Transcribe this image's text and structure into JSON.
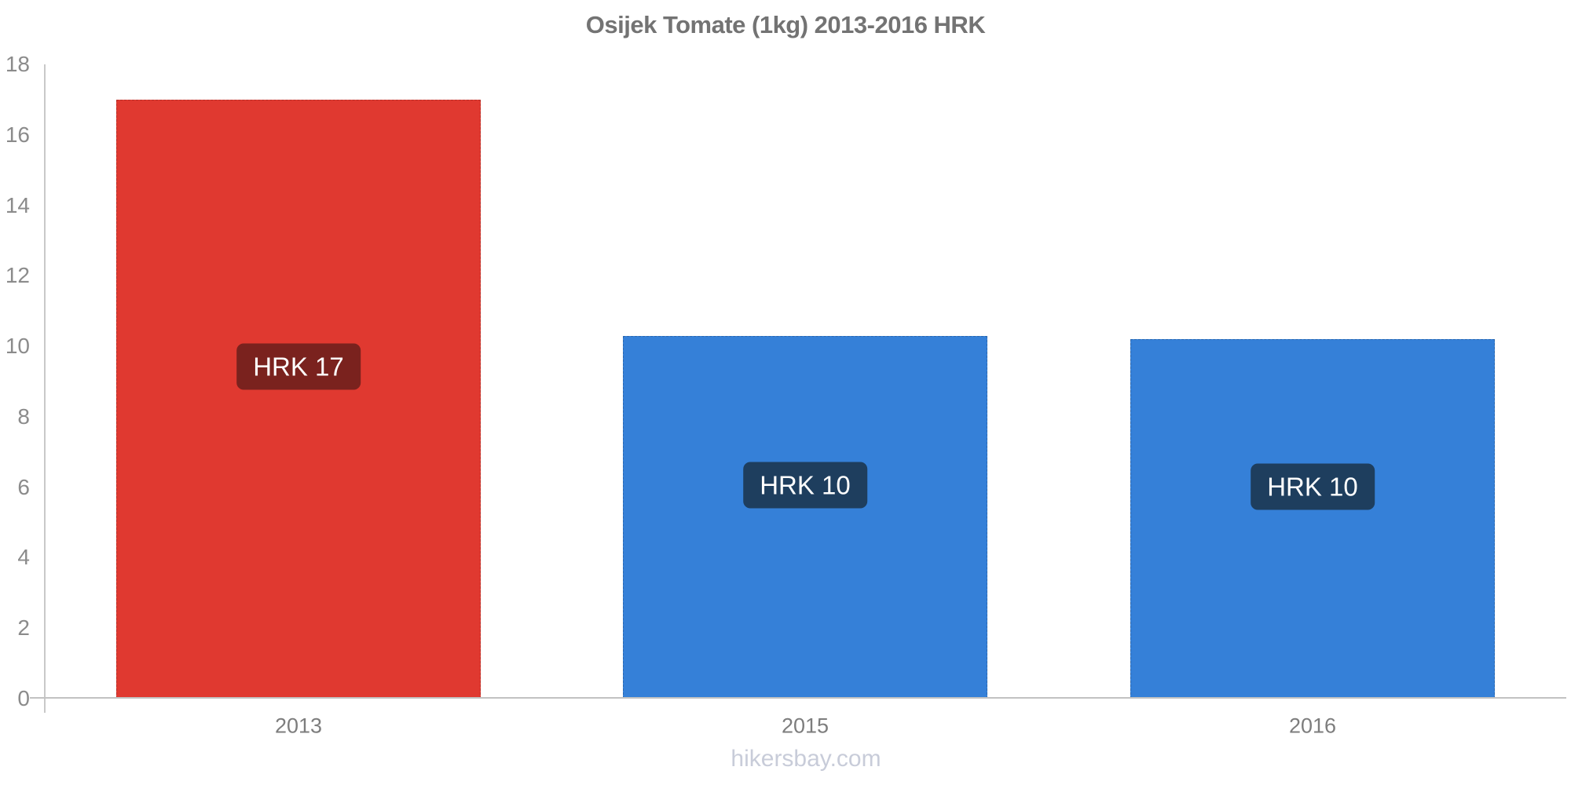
{
  "chart_data": {
    "type": "bar",
    "title": "Osijek Tomate (1kg) 2013-2016 HRK",
    "xlabel": "",
    "ylabel": "",
    "categories": [
      "2013",
      "2015",
      "2016"
    ],
    "values": [
      17,
      10.3,
      10.2
    ],
    "bar_labels": [
      "HRK 17",
      "HRK 10",
      "HRK 10"
    ],
    "bar_colors": [
      "#e03930",
      "#3580d8",
      "#3580d8"
    ],
    "label_bg_colors": [
      "#7a221e",
      "#1e3e5e",
      "#1e3e5e"
    ],
    "label_text_color": "#ffffff",
    "ylim": [
      0,
      18
    ],
    "yticks": [
      0,
      2,
      4,
      6,
      8,
      10,
      12,
      14,
      16,
      18
    ],
    "grid": false,
    "legend": "none",
    "currency": "HRK",
    "axis_color": "#c9c9c9",
    "tick_label_color": "#8b8b8b",
    "category_label_color": "#7d7d7d",
    "title_color": "#737373"
  },
  "footer": {
    "text": "hikersbay.com",
    "color": "#c8ccd9"
  }
}
